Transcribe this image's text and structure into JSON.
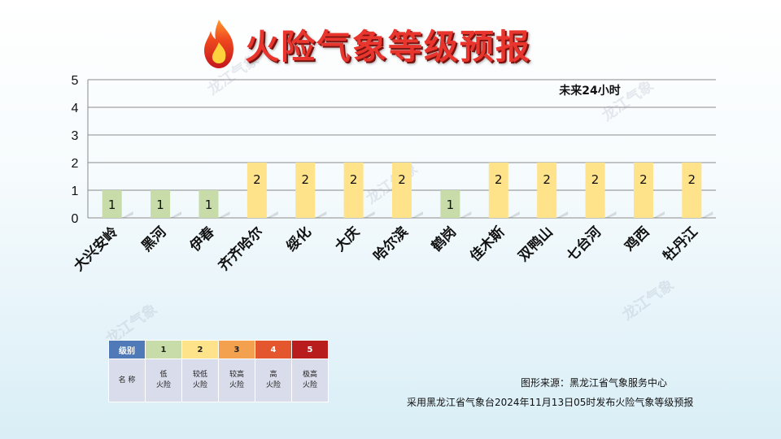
{
  "title": "火险气象等级预报",
  "period_label": "未来24小时",
  "watermark": "龙江气象",
  "colors": {
    "level1": "#c7dca8",
    "level2": "#ffe38a",
    "grid": "#8a8a8a",
    "title": "#e8352d"
  },
  "chart_data": {
    "type": "bar",
    "categories": [
      "大兴安岭",
      "黑河",
      "伊春",
      "齐齐哈尔",
      "绥化",
      "大庆",
      "哈尔滨",
      "鹤岗",
      "佳木斯",
      "双鸭山",
      "七台河",
      "鸡西",
      "牡丹江"
    ],
    "values": [
      1,
      1,
      1,
      2,
      2,
      2,
      2,
      1,
      2,
      2,
      2,
      2,
      2
    ],
    "ylim": [
      0,
      5
    ],
    "yticks": [
      0,
      1,
      2,
      3,
      4,
      5
    ],
    "data_labels": true,
    "grid": true
  },
  "legend": {
    "header_label": "级别",
    "name_label": "名 称",
    "levels": [
      {
        "level": "1",
        "name": "低\n火险",
        "color": "#c7dca8"
      },
      {
        "level": "2",
        "name": "较低\n火险",
        "color": "#ffe38a"
      },
      {
        "level": "3",
        "name": "较高\n火险",
        "color": "#f4a14f"
      },
      {
        "level": "4",
        "name": "高\n火险",
        "color": "#e4572e"
      },
      {
        "level": "5",
        "name": "极高\n火险",
        "color": "#b81c1c"
      }
    ],
    "header_color": "#4f79b7"
  },
  "source": "图形来源：黑龙江省气象服务中心",
  "note": "采用黑龙江省气象台2024年11月13日05时发布火险气象等级预报"
}
